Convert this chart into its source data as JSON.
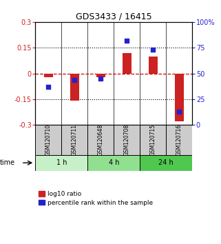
{
  "title": "GDS3433 / 16415",
  "samples": [
    "GSM120710",
    "GSM120711",
    "GSM120648",
    "GSM120708",
    "GSM120715",
    "GSM120716"
  ],
  "groups": [
    {
      "label": "1 h",
      "indices": [
        0,
        1
      ],
      "color": "#c8f0c8"
    },
    {
      "label": "4 h",
      "indices": [
        2,
        3
      ],
      "color": "#90e090"
    },
    {
      "label": "24 h",
      "indices": [
        4,
        5
      ],
      "color": "#50c850"
    }
  ],
  "log10_ratio": [
    -0.02,
    -0.16,
    -0.02,
    0.12,
    0.1,
    -0.28
  ],
  "percentile_rank": [
    37,
    44,
    45,
    82,
    73,
    13
  ],
  "ylim_left": [
    -0.3,
    0.3
  ],
  "ylim_right": [
    0,
    100
  ],
  "yticks_left": [
    -0.3,
    -0.15,
    0,
    0.15,
    0.3
  ],
  "yticks_right": [
    0,
    25,
    50,
    75,
    100
  ],
  "bar_color": "#cc2222",
  "dot_color": "#2222cc",
  "hline_color": "#cc0000",
  "dotted_color": "#000000",
  "bg_sample_color": "#cccccc",
  "legend_red_label": "log10 ratio",
  "legend_blue_label": "percentile rank within the sample",
  "figsize": [
    3.21,
    3.54
  ],
  "dpi": 100
}
